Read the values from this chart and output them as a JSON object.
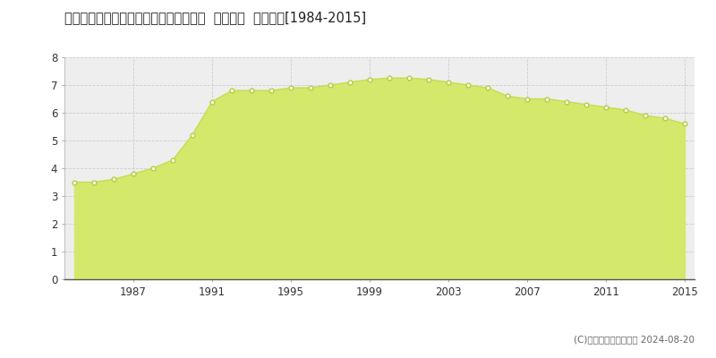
{
  "title": "栃木県栃木市千塚町字春名塚１６７番２  地価公示  地価推移[1984-2015]",
  "years": [
    1984,
    1985,
    1986,
    1987,
    1988,
    1989,
    1990,
    1991,
    1992,
    1993,
    1994,
    1995,
    1996,
    1997,
    1998,
    1999,
    2000,
    2001,
    2002,
    2003,
    2004,
    2005,
    2006,
    2007,
    2008,
    2009,
    2010,
    2011,
    2012,
    2013,
    2014,
    2015
  ],
  "values": [
    3.5,
    3.5,
    3.6,
    3.8,
    4.0,
    4.3,
    5.2,
    6.4,
    6.8,
    6.8,
    6.8,
    6.9,
    6.9,
    7.0,
    7.1,
    7.2,
    7.25,
    7.25,
    7.2,
    7.1,
    7.0,
    6.9,
    6.6,
    6.5,
    6.5,
    6.4,
    6.3,
    6.2,
    6.1,
    5.9,
    5.8,
    5.6
  ],
  "fill_color": "#d4e96b",
  "line_color": "#c8dc50",
  "marker_facecolor": "#ffffff",
  "marker_edgecolor": "#b8cc40",
  "bg_color": "#ffffff",
  "plot_bg_color": "#eeeeee",
  "grid_color": "#cccccc",
  "yticks": [
    0,
    1,
    2,
    3,
    4,
    5,
    6,
    7,
    8
  ],
  "xticks": [
    1987,
    1991,
    1995,
    1999,
    2003,
    2007,
    2011,
    2015
  ],
  "ylim": [
    0,
    8
  ],
  "xlim_left": 1983.5,
  "xlim_right": 2015.5,
  "legend_color": "#c8dc50",
  "copyright_text": "(C)土地価格ドットコム 2024-08-20"
}
